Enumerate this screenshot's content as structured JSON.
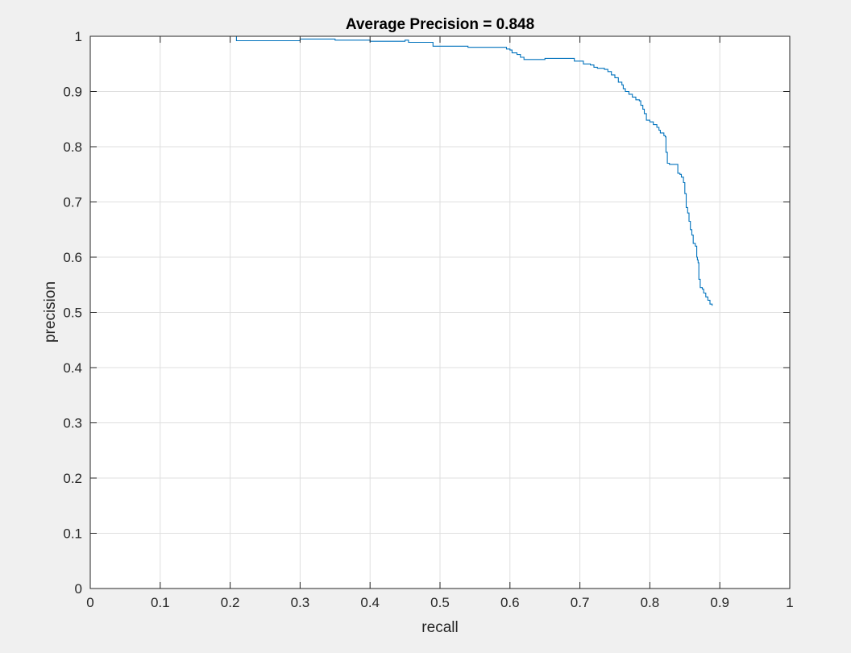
{
  "chart_data": {
    "type": "line",
    "title": "Average Precision = 0.848",
    "xlabel": "recall",
    "ylabel": "precision",
    "xlim": [
      0,
      1
    ],
    "ylim": [
      0,
      1
    ],
    "xticks": [
      "0",
      "0.1",
      "0.2",
      "0.3",
      "0.4",
      "0.5",
      "0.6",
      "0.7",
      "0.8",
      "0.9",
      "1"
    ],
    "yticks": [
      "0",
      "0.1",
      "0.2",
      "0.3",
      "0.4",
      "0.5",
      "0.6",
      "0.7",
      "0.8",
      "0.9",
      "1"
    ],
    "grid": true,
    "line_color": "#0072bd",
    "series": [
      {
        "x": [
          0,
          0.209,
          0.209,
          0.3,
          0.35,
          0.4,
          0.4,
          0.45,
          0.455,
          0.49,
          0.49,
          0.54,
          0.54,
          0.59,
          0.595,
          0.6,
          0.603,
          0.61,
          0.615,
          0.62,
          0.64,
          0.65,
          0.69,
          0.692,
          0.7,
          0.705,
          0.715,
          0.72,
          0.725,
          0.73,
          0.735,
          0.74,
          0.745,
          0.75,
          0.755,
          0.76,
          0.762,
          0.765,
          0.77,
          0.775,
          0.78,
          0.785,
          0.787,
          0.79,
          0.792,
          0.795,
          0.8,
          0.805,
          0.81,
          0.813,
          0.815,
          0.82,
          0.822,
          0.823,
          0.825,
          0.828,
          0.835,
          0.84,
          0.843,
          0.845,
          0.848,
          0.85,
          0.852,
          0.854,
          0.856,
          0.858,
          0.86,
          0.862,
          0.865,
          0.867,
          0.868,
          0.869,
          0.87,
          0.872,
          0.875,
          0.877,
          0.88,
          0.883,
          0.886,
          0.889
        ],
        "y": [
          1.0,
          1.0,
          0.992,
          0.995,
          0.993,
          0.994,
          0.991,
          0.993,
          0.989,
          0.989,
          0.982,
          0.982,
          0.98,
          0.98,
          0.977,
          0.975,
          0.97,
          0.967,
          0.962,
          0.958,
          0.958,
          0.96,
          0.96,
          0.955,
          0.955,
          0.95,
          0.948,
          0.944,
          0.942,
          0.942,
          0.94,
          0.936,
          0.93,
          0.925,
          0.917,
          0.912,
          0.905,
          0.9,
          0.895,
          0.89,
          0.885,
          0.883,
          0.875,
          0.868,
          0.86,
          0.848,
          0.845,
          0.84,
          0.835,
          0.83,
          0.825,
          0.82,
          0.818,
          0.79,
          0.77,
          0.768,
          0.768,
          0.752,
          0.75,
          0.745,
          0.735,
          0.715,
          0.69,
          0.68,
          0.665,
          0.65,
          0.64,
          0.625,
          0.62,
          0.6,
          0.595,
          0.59,
          0.56,
          0.545,
          0.542,
          0.535,
          0.528,
          0.522,
          0.515,
          0.512
        ]
      }
    ]
  }
}
